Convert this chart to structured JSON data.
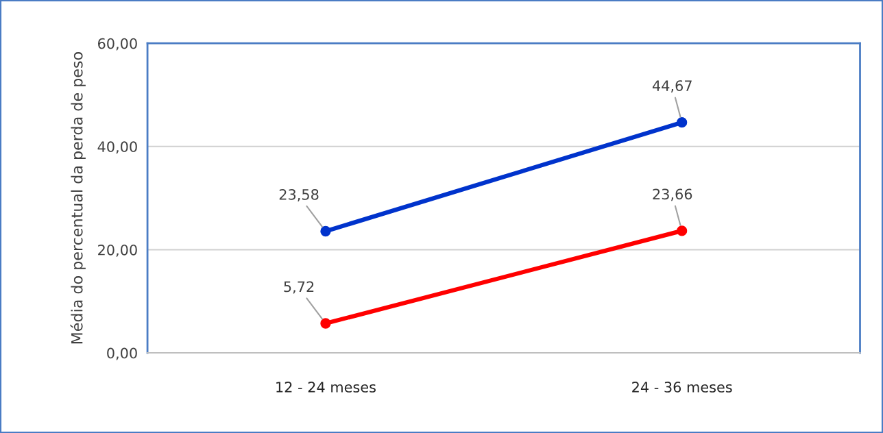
{
  "chart_data": {
    "type": "line",
    "ylabel": "Média do percentual da perda de peso",
    "categories": [
      "12 - 24 meses",
      "24 - 36 meses"
    ],
    "series": [
      {
        "color": "#0033cc",
        "values": [
          23.58,
          44.67
        ],
        "value_labels": [
          "23,58",
          "44,67"
        ]
      },
      {
        "color": "#ff0000",
        "values": [
          5.72,
          23.66
        ],
        "value_labels": [
          "5,72",
          "23,66"
        ]
      }
    ],
    "ylim": [
      0,
      60
    ],
    "yticks": [
      {
        "value": 0,
        "label": "0,00"
      },
      {
        "value": 20,
        "label": "20,00"
      },
      {
        "value": 40,
        "label": "40,00"
      },
      {
        "value": 60,
        "label": "60,00"
      }
    ],
    "grid": "y",
    "marker": "circle",
    "line_style": "solid",
    "legend": false
  }
}
